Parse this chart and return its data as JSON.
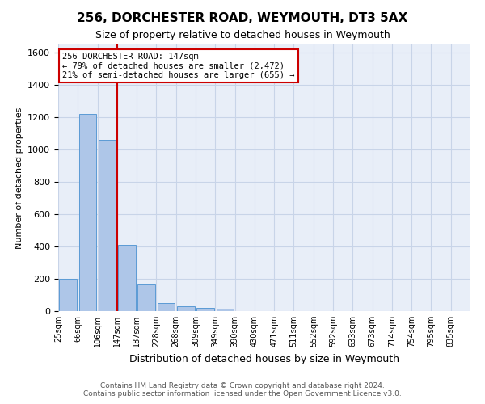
{
  "title": "256, DORCHESTER ROAD, WEYMOUTH, DT3 5AX",
  "subtitle": "Size of property relative to detached houses in Weymouth",
  "xlabel": "Distribution of detached houses by size in Weymouth",
  "ylabel": "Number of detached properties",
  "bin_labels": [
    "25sqm",
    "66sqm",
    "106sqm",
    "147sqm",
    "187sqm",
    "228sqm",
    "268sqm",
    "309sqm",
    "349sqm",
    "390sqm",
    "430sqm",
    "471sqm",
    "511sqm",
    "552sqm",
    "592sqm",
    "633sqm",
    "673sqm",
    "714sqm",
    "754sqm",
    "795sqm",
    "835sqm"
  ],
  "bar_values": [
    200,
    1220,
    1060,
    410,
    165,
    50,
    30,
    20,
    15,
    0,
    0,
    0,
    0,
    0,
    0,
    0,
    0,
    0,
    0,
    0,
    0
  ],
  "bar_color": "#aec6e8",
  "bar_edge_color": "#5b9bd5",
  "vline_pos": 2.5,
  "vline_color": "#cc0000",
  "annotation_text_line1": "256 DORCHESTER ROAD: 147sqm",
  "annotation_text_line2": "← 79% of detached houses are smaller (2,472)",
  "annotation_text_line3": "21% of semi-detached houses are larger (655) →",
  "annotation_box_color": "#cc0000",
  "ylim": [
    0,
    1650
  ],
  "yticks": [
    0,
    200,
    400,
    600,
    800,
    1000,
    1200,
    1400,
    1600
  ],
  "grid_color": "#c8d4e8",
  "background_color": "#e8eef8",
  "footer_line1": "Contains HM Land Registry data © Crown copyright and database right 2024.",
  "footer_line2": "Contains public sector information licensed under the Open Government Licence v3.0."
}
